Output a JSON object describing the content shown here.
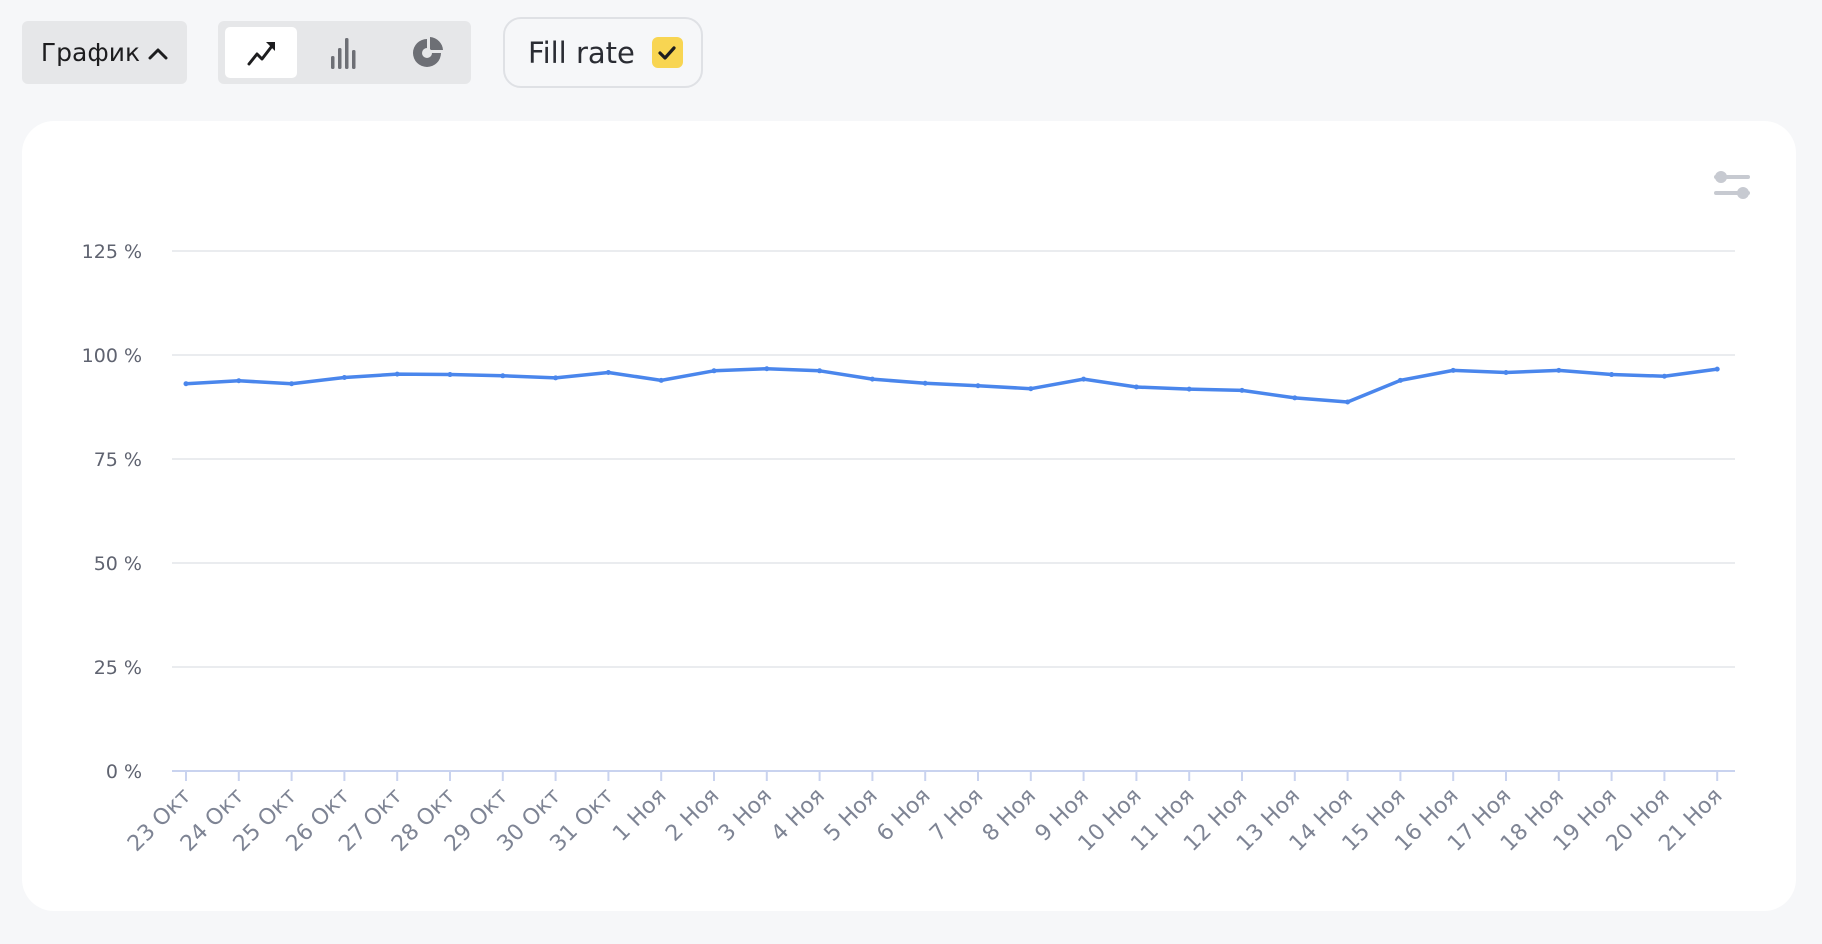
{
  "toolbar": {
    "mode_label": "График",
    "chart_types": [
      {
        "name": "line-chart-icon",
        "active": true
      },
      {
        "name": "bar-chart-icon",
        "active": false
      },
      {
        "name": "pie-chart-icon",
        "active": false
      }
    ],
    "metric_toggle": {
      "label": "Fill rate",
      "checked": true
    }
  },
  "colors": {
    "line": "#4a86ec",
    "grid": "#e3e5ea",
    "axis": "#c9d3ef",
    "checkbox": "#f8d552"
  },
  "chart_data": {
    "type": "line",
    "title": "",
    "xlabel": "",
    "ylabel": "",
    "ylim": [
      0,
      125
    ],
    "y_ticks": [
      "0 %",
      "25 %",
      "50 %",
      "75 %",
      "100 %",
      "125 %"
    ],
    "y_tick_values": [
      0,
      25,
      50,
      75,
      100,
      125
    ],
    "grid": true,
    "categories": [
      "23 Окт",
      "24 Окт",
      "25 Окт",
      "26 Окт",
      "27 Окт",
      "28 Окт",
      "29 Окт",
      "30 Окт",
      "31 Окт",
      "1 Ноя",
      "2 Ноя",
      "3 Ноя",
      "4 Ноя",
      "5 Ноя",
      "6 Ноя",
      "7 Ноя",
      "8 Ноя",
      "9 Ноя",
      "10 Ноя",
      "11 Ноя",
      "12 Ноя",
      "13 Ноя",
      "14 Ноя",
      "15 Ноя",
      "16 Ноя",
      "17 Ноя",
      "18 Ноя",
      "19 Ноя",
      "20 Ноя",
      "21 Ноя"
    ],
    "series": [
      {
        "values": [
          93.1,
          93.8,
          93.1,
          94.6,
          95.4,
          95.3,
          95.0,
          94.5,
          95.8,
          93.9,
          96.2,
          96.7,
          96.2,
          94.2,
          93.2,
          92.6,
          91.9,
          94.2,
          92.3,
          91.8,
          91.5,
          89.7,
          88.7,
          93.9,
          96.3,
          95.8,
          96.3,
          95.3,
          94.9,
          96.6
        ]
      }
    ]
  }
}
